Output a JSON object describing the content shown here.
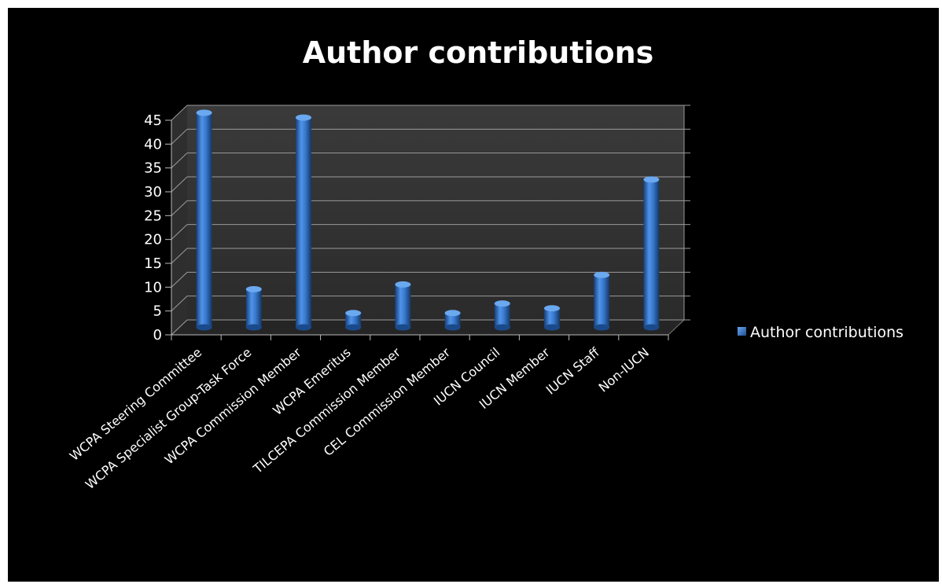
{
  "chart_data": {
    "type": "bar",
    "title": "Author contributions",
    "xlabel": "",
    "ylabel": "",
    "categories": [
      "WCPA Steering Committee",
      "WCPA Specialist Group-Task Force",
      "WCPA Commission Member",
      "WCPA Emeritus",
      "TILCEPA Commission Member",
      "CEL Commission Member",
      "IUCN Council",
      "IUCN Member",
      "IUCN Staff",
      "Non-IUCN"
    ],
    "series": [
      {
        "name": "Author contributions",
        "values": [
          45,
          8,
          44,
          3,
          9,
          3,
          5,
          4,
          11,
          31
        ],
        "color": "#3f7fd4"
      }
    ],
    "ylim": [
      0,
      45
    ],
    "yticks": [
      0,
      5,
      10,
      15,
      20,
      25,
      30,
      35,
      40,
      45
    ],
    "grid": true,
    "legend": "right",
    "colors": {
      "background": "#000000",
      "wall": "#333333",
      "floor": "#2a2a2a",
      "gridline": "#9a9a9a",
      "text": "#ffffff"
    }
  }
}
